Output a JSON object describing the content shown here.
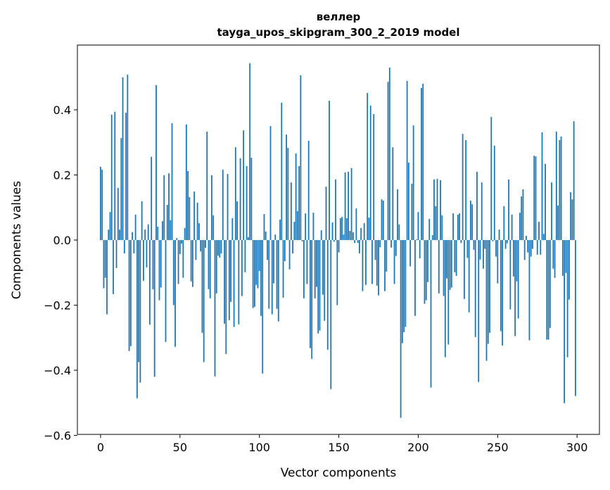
{
  "chart_data": {
    "type": "bar",
    "title": [
      "веллер",
      "tayga_upos_skipgram_300_2_2019 model"
    ],
    "xlabel": "Vector components",
    "ylabel": "Components values",
    "xlim": [
      -14.6,
      314.1
    ],
    "ylim": [
      -0.597,
      0.599
    ],
    "xticks": [
      0,
      50,
      100,
      150,
      200,
      250,
      300
    ],
    "xtick_labels": [
      "0",
      "50",
      "100",
      "150",
      "200",
      "250",
      "300"
    ],
    "yticks": [
      -0.6,
      -0.4,
      -0.2,
      0.0,
      0.2,
      0.4
    ],
    "ytick_labels": [
      "−0.6",
      "−0.4",
      "−0.2",
      "0.0",
      "0.2",
      "0.4"
    ],
    "grid": false,
    "color": "#1f77b4",
    "bar_width": 0.8,
    "values": [
      0.225,
      0.216,
      -0.148,
      -0.116,
      -0.228,
      0.032,
      0.086,
      0.385,
      -0.166,
      0.394,
      -0.086,
      0.16,
      0.032,
      0.313,
      0.5,
      -0.041,
      0.391,
      0.508,
      -0.341,
      -0.326,
      0.024,
      -0.041,
      0.078,
      -0.486,
      -0.375,
      -0.438,
      0.119,
      -0.125,
      0.032,
      -0.084,
      0.048,
      -0.26,
      0.256,
      -0.151,
      -0.42,
      0.476,
      0.041,
      -0.185,
      -0.146,
      0.058,
      0.199,
      -0.313,
      0.108,
      0.205,
      0.061,
      0.359,
      -0.2,
      -0.328,
      0.006,
      -0.135,
      -0.043,
      -0.011,
      -0.116,
      0.037,
      0.355,
      0.212,
      0.132,
      -0.127,
      -0.144,
      0.149,
      -0.061,
      0.115,
      0.052,
      -0.035,
      -0.285,
      -0.375,
      -0.024,
      0.333,
      -0.151,
      -0.179,
      0.199,
      0.076,
      -0.419,
      -0.164,
      -0.048,
      -0.054,
      -0.041,
      0.216,
      -0.257,
      -0.35,
      0.203,
      -0.246,
      -0.19,
      0.067,
      -0.267,
      0.285,
      0.119,
      -0.259,
      0.251,
      -0.172,
      0.337,
      -0.099,
      0.227,
      0.009,
      0.543,
      0.253,
      -0.209,
      -0.205,
      -0.138,
      -0.148,
      -0.095,
      -0.233,
      -0.41,
      0.08,
      0.026,
      -0.061,
      -0.211,
      0.35,
      -0.228,
      -0.133,
      0.017,
      -0.211,
      -0.25,
      0.063,
      0.422,
      -0.177,
      -0.065,
      0.324,
      0.283,
      -0.09,
      0.177,
      -0.041,
      0.056,
      0.266,
      0.089,
      0.227,
      0.506,
      -0.004,
      -0.179,
      0.082,
      -0.135,
      0.305,
      -0.332,
      -0.365,
      0.084,
      -0.179,
      -0.144,
      -0.287,
      -0.278,
      0.03,
      -0.168,
      -0.248,
      0.164,
      -0.337,
      0.428,
      -0.458,
      0.054,
      -0.005,
      0.186,
      -0.2,
      -0.038,
      0.067,
      0.071,
      0.017,
      0.208,
      0.067,
      0.21,
      0.028,
      0.221,
      0.024,
      -0.009,
      0.097,
      -0.009,
      -0.041,
      0.037,
      -0.157,
      0.052,
      -0.138,
      0.452,
      0.069,
      0.413,
      -0.135,
      0.387,
      -0.061,
      -0.14,
      -0.17,
      -0.022,
      0.125,
      0.121,
      -0.157,
      -0.097,
      0.486,
      0.53,
      -0.023,
      0.285,
      -0.135,
      -0.049,
      0.156,
      0.048,
      -0.546,
      -0.317,
      -0.283,
      -0.267,
      0.489,
      0.238,
      -0.081,
      0.173,
      0.352,
      -0.233,
      0.002,
      0.086,
      -0.056,
      0.467,
      0.48,
      -0.196,
      -0.185,
      -0.129,
      0.065,
      -0.453,
      0.015,
      0.186,
      0.104,
      0.188,
      -0.164,
      0.184,
      0.076,
      -0.172,
      -0.36,
      -0.118,
      -0.321,
      -0.153,
      -0.146,
      0.082,
      -0.099,
      -0.11,
      0.078,
      0.082,
      -0.009,
      0.326,
      -0.181,
      0.307,
      -0.055,
      -0.222,
      0.121,
      0.11,
      -0.03,
      -0.298,
      0.21,
      -0.436,
      -0.06,
      0.177,
      -0.088,
      -0.027,
      -0.371,
      -0.319,
      -0.285,
      0.378,
      -0.004,
      0.29,
      -0.051,
      -0.133,
      0.032,
      -0.28,
      -0.324,
      0.104,
      -0.027,
      -0.01,
      0.186,
      -0.213,
      0.078,
      -0.112,
      -0.295,
      -0.127,
      -0.241,
      0.084,
      0.134,
      0.156,
      -0.061,
      0.013,
      -0.038,
      -0.308,
      -0.051,
      -0.027,
      0.259,
      0.257,
      -0.045,
      0.056,
      -0.045,
      0.331,
      0.019,
      0.234,
      -0.306,
      -0.306,
      -0.27,
      0.177,
      -0.088,
      -0.116,
      0.333,
      0.106,
      0.307,
      0.318,
      -0.11,
      -0.501,
      -0.101,
      -0.36,
      -0.183,
      0.147,
      0.125,
      0.365,
      -0.479
    ]
  }
}
